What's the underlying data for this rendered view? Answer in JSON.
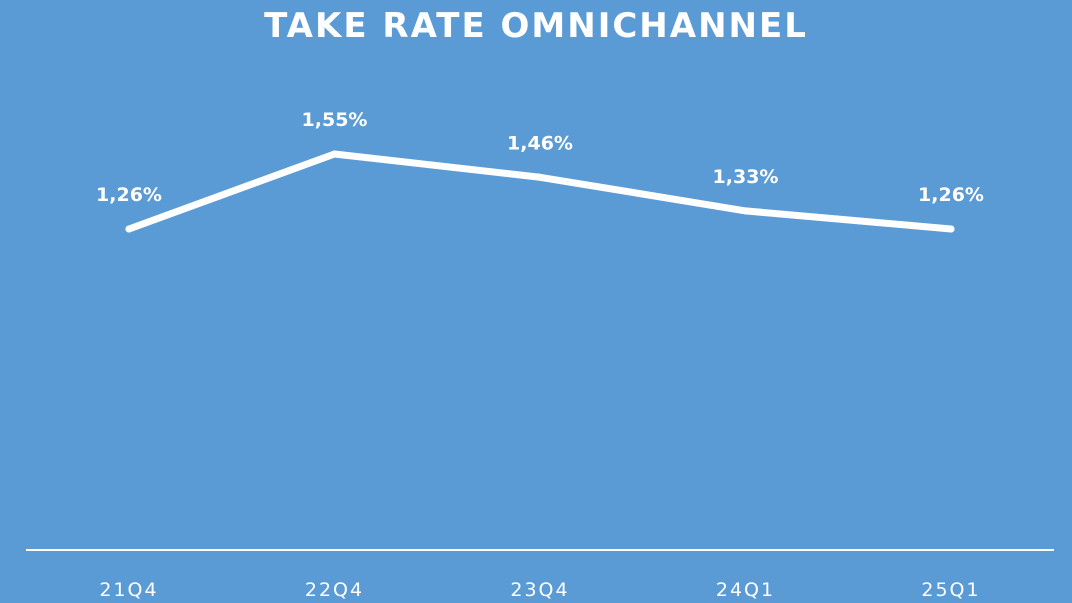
{
  "chart_data": {
    "type": "line",
    "title": "TAKE RATE OMNICHANNEL",
    "categories": [
      "21Q4",
      "22Q4",
      "23Q4",
      "24Q1",
      "25Q1"
    ],
    "series": [
      {
        "values": [
          1.26,
          1.55,
          1.46,
          1.33,
          1.26
        ],
        "labels": [
          "1,26%",
          "1,55%",
          "1,46%",
          "1,33%",
          "1,26%"
        ]
      }
    ],
    "ylim": [
      0,
      1.8
    ],
    "grid": false,
    "drop_lines": true,
    "line_color": "#ffffff",
    "background_color": "#5b9bd5"
  }
}
